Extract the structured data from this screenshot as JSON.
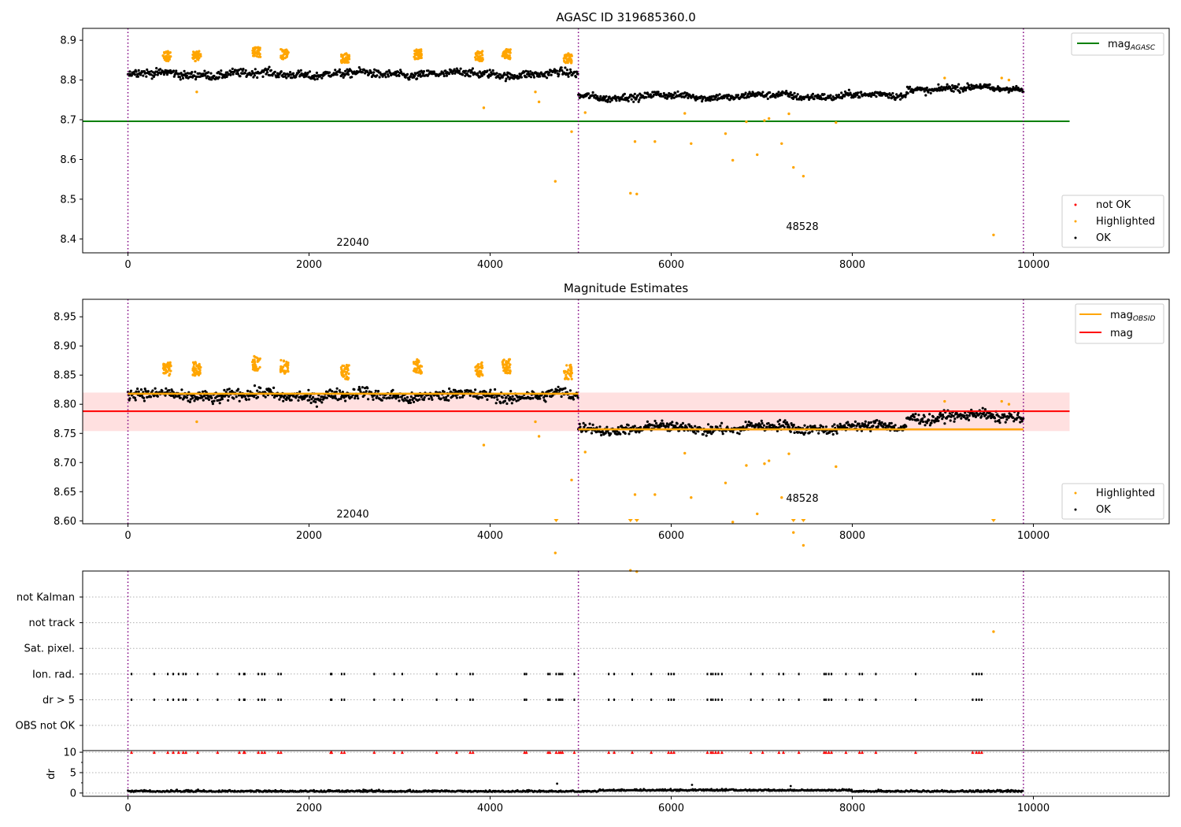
{
  "colors": {
    "ok": "#000000",
    "highlighted": "#ffa500",
    "not_ok": "#ff0000",
    "mag_agasc": "#008000",
    "mag_obsid": "#ffa500",
    "mag": "#ff0000",
    "mag_band": "#ffcccc",
    "obs_boundary": "#800080",
    "grid": "#b0b0b0"
  },
  "chart_data": [
    {
      "type": "scatter",
      "title": "AGASC ID 319685360.0",
      "xlim": [
        -500,
        11500
      ],
      "ylim": [
        8.365,
        8.93
      ],
      "x_ticks": [
        0,
        2000,
        4000,
        6000,
        8000,
        10000
      ],
      "y_ticks": [
        8.4,
        8.5,
        8.6,
        8.7,
        8.8,
        8.9
      ],
      "obs_boundaries": [
        0,
        4975,
        9890
      ],
      "obs_labels": [
        {
          "text": "22040",
          "x": 2480,
          "y": 8.39
        },
        {
          "text": "48528",
          "x": 7400,
          "y": 8.43
        }
      ],
      "lines": [
        {
          "name": "mag_AGASC",
          "value": 8.696,
          "x_range": [
            -500,
            10400
          ]
        }
      ],
      "legends": [
        {
          "position": "top-right",
          "items": [
            {
              "label": "mag",
              "sub": "AGASC",
              "kind": "line",
              "color_key": "mag_agasc"
            }
          ]
        },
        {
          "position": "lower-right",
          "items": [
            {
              "label": "not OK",
              "kind": "dot",
              "color_key": "not_ok"
            },
            {
              "label": "Highlighted",
              "kind": "dot",
              "color_key": "highlighted"
            },
            {
              "label": "OK",
              "kind": "dot",
              "color_key": "ok"
            }
          ]
        }
      ],
      "series": [
        {
          "name": "OK",
          "segments": [
            {
              "x_range": [
                0,
                4975
              ],
              "level_start": 8.815,
              "level_end": 8.815,
              "spread": 0.013
            },
            {
              "x_range": [
                4975,
                9890
              ],
              "level_start": 8.758,
              "level_end": 8.762,
              "spread": 0.011
            }
          ]
        },
        {
          "name": "Highlighted",
          "clusters": [
            {
              "x": 430,
              "y": 8.86
            },
            {
              "x": 760,
              "y": 8.86
            },
            {
              "x": 1420,
              "y": 8.87
            },
            {
              "x": 1730,
              "y": 8.865
            },
            {
              "x": 2400,
              "y": 8.855
            },
            {
              "x": 3200,
              "y": 8.865
            },
            {
              "x": 3880,
              "y": 8.86
            },
            {
              "x": 4180,
              "y": 8.865
            },
            {
              "x": 4860,
              "y": 8.855
            }
          ],
          "points": [
            {
              "x": 760,
              "y": 8.77
            },
            {
              "x": 3930,
              "y": 8.73
            },
            {
              "x": 4500,
              "y": 8.77
            },
            {
              "x": 4540,
              "y": 8.745
            },
            {
              "x": 4720,
              "y": 8.545
            },
            {
              "x": 4900,
              "y": 8.67
            },
            {
              "x": 5050,
              "y": 8.718
            },
            {
              "x": 5550,
              "y": 8.515
            },
            {
              "x": 5600,
              "y": 8.645
            },
            {
              "x": 5620,
              "y": 8.513
            },
            {
              "x": 5820,
              "y": 8.645
            },
            {
              "x": 6150,
              "y": 8.716
            },
            {
              "x": 6220,
              "y": 8.64
            },
            {
              "x": 6600,
              "y": 8.665
            },
            {
              "x": 6680,
              "y": 8.598
            },
            {
              "x": 6830,
              "y": 8.695
            },
            {
              "x": 6950,
              "y": 8.612
            },
            {
              "x": 7030,
              "y": 8.698
            },
            {
              "x": 7080,
              "y": 8.703
            },
            {
              "x": 7220,
              "y": 8.64
            },
            {
              "x": 7300,
              "y": 8.715
            },
            {
              "x": 7350,
              "y": 8.58
            },
            {
              "x": 7460,
              "y": 8.558
            },
            {
              "x": 7820,
              "y": 8.693
            },
            {
              "x": 9020,
              "y": 8.805
            },
            {
              "x": 9560,
              "y": 8.41
            },
            {
              "x": 9650,
              "y": 8.805
            },
            {
              "x": 9730,
              "y": 8.8
            }
          ]
        }
      ]
    },
    {
      "type": "scatter",
      "title": "Magnitude Estimates",
      "xlim": [
        -500,
        11500
      ],
      "ylim": [
        8.595,
        8.98
      ],
      "x_ticks": [
        0,
        2000,
        4000,
        6000,
        8000,
        10000
      ],
      "y_ticks": [
        8.6,
        8.65,
        8.7,
        8.75,
        8.8,
        8.85,
        8.9,
        8.95
      ],
      "y_tick_labels": [
        "8.60",
        "8.65",
        "8.70",
        "8.75",
        "8.80",
        "8.85",
        "8.90",
        "8.95"
      ],
      "obs_boundaries": [
        0,
        4975,
        9890
      ],
      "obs_labels": [
        {
          "text": "22040",
          "x": 2480,
          "y": 8.607
        },
        {
          "text": "48528",
          "x": 7400,
          "y": 8.636
        }
      ],
      "lines": [
        {
          "name": "mag",
          "value": 8.788,
          "x_range": [
            -500,
            10400
          ]
        },
        {
          "name": "mag_OBSID",
          "segments": [
            {
              "x_range": [
                0,
                4975
              ],
              "value": 8.818
            },
            {
              "x_range": [
                4975,
                9890
              ],
              "value": 8.757
            }
          ]
        }
      ],
      "band": {
        "y_range": [
          8.754,
          8.82
        ],
        "x_range": [
          -500,
          10400
        ]
      },
      "legends": [
        {
          "position": "top-right",
          "items": [
            {
              "label": "mag",
              "sub": "OBSID",
              "kind": "line",
              "color_key": "mag_obsid"
            },
            {
              "label": "mag",
              "kind": "line",
              "color_key": "mag"
            }
          ]
        },
        {
          "position": "lower-right",
          "items": [
            {
              "label": "Highlighted",
              "kind": "dot",
              "color_key": "highlighted"
            },
            {
              "label": "OK",
              "kind": "dot",
              "color_key": "ok"
            }
          ]
        }
      ],
      "off_scale_markers": [
        4730,
        5550,
        5620,
        7350,
        7460,
        9560
      ]
    },
    {
      "type": "scatter",
      "xlim": [
        -500,
        11500
      ],
      "x_ticks": [
        0,
        2000,
        4000,
        6000,
        8000,
        10000
      ],
      "flag_rows": [
        "not Kalman",
        "not track",
        "Sat. pixel.",
        "Ion. rad.",
        "dr > 5",
        "OBS not OK"
      ],
      "flag_events": [
        40,
        290,
        440,
        500,
        560,
        610,
        640,
        770,
        990,
        1230,
        1280,
        1290,
        1440,
        1480,
        1510,
        1660,
        1690,
        2240,
        2250,
        2360,
        2390,
        2720,
        2940,
        3030,
        3410,
        3630,
        3780,
        3810,
        4380,
        4400,
        4640,
        4660,
        4730,
        4760,
        4780,
        4800,
        4930,
        5310,
        5370,
        5570,
        5780,
        5970,
        6000,
        6030,
        6400,
        6440,
        6460,
        6490,
        6520,
        6560,
        6880,
        7010,
        7190,
        7240,
        7410,
        7690,
        7710,
        7740,
        7770,
        7930,
        8080,
        8110,
        8260,
        8700,
        9330,
        9370,
        9400,
        9430
      ],
      "dr": {
        "ylabel": "dr",
        "y_ticks": [
          0,
          5,
          10
        ],
        "ylim": [
          -0.8,
          10.4
        ],
        "level": 0.3,
        "spread": 0.25,
        "spikes": [
          {
            "x": 4740,
            "y": 2.3
          },
          {
            "x": 6230,
            "y": 2.0
          },
          {
            "x": 7320,
            "y": 1.7
          }
        ]
      }
    }
  ]
}
